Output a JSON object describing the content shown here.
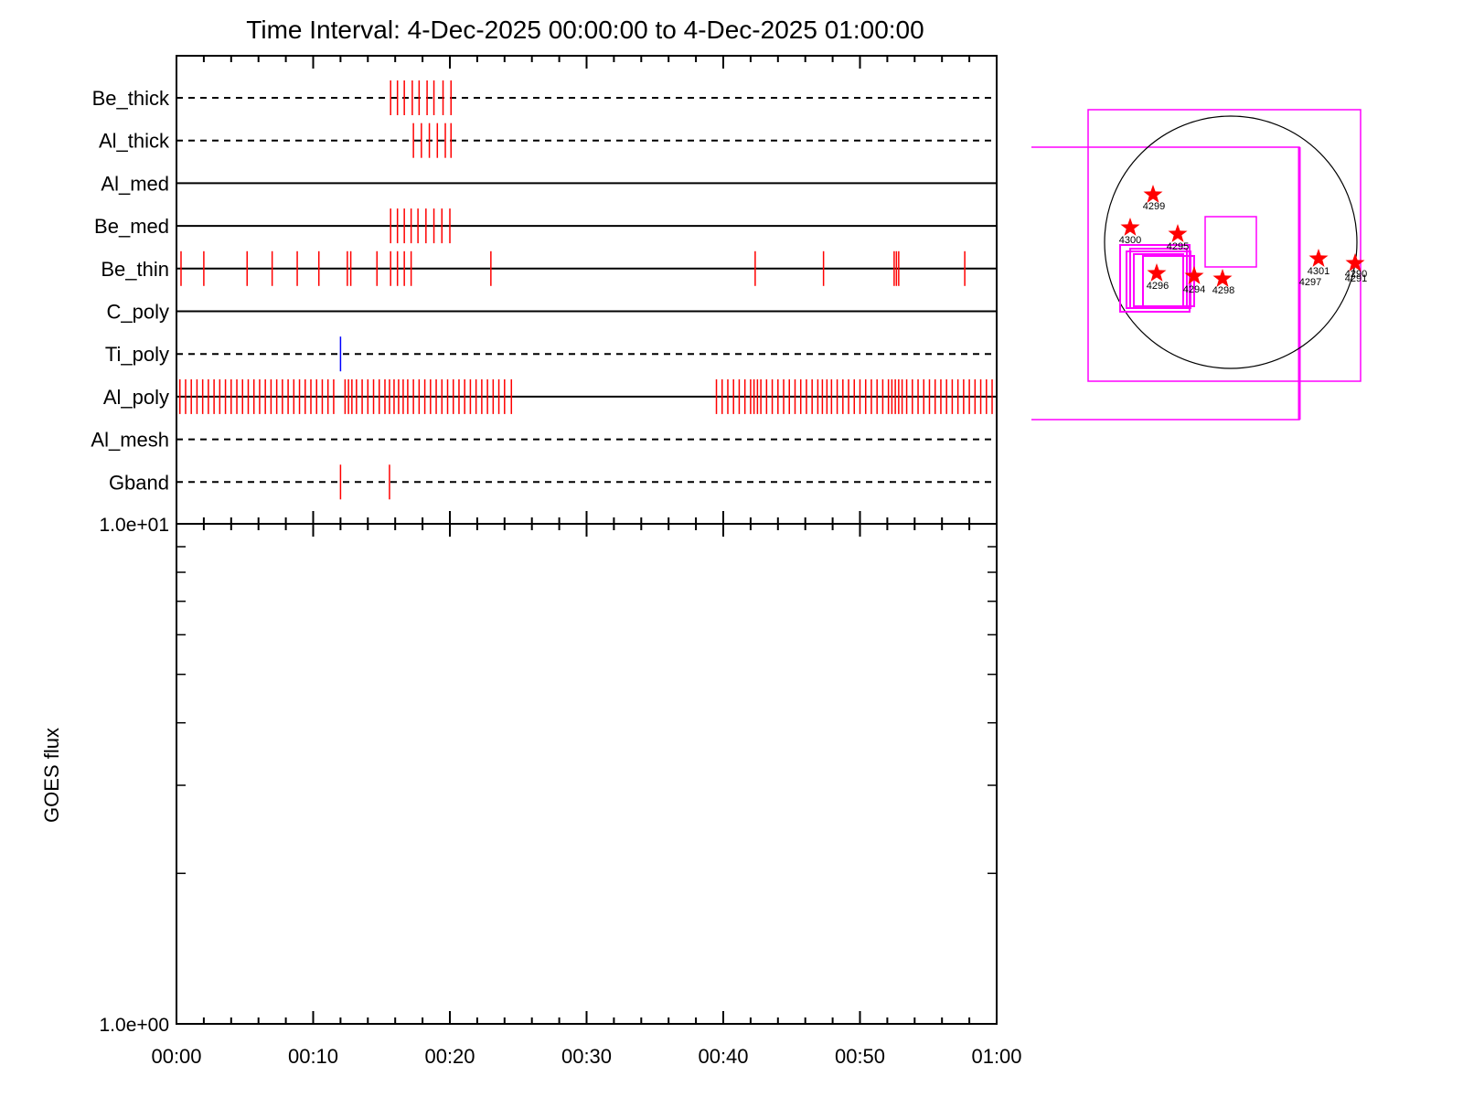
{
  "title": "Time Interval:  4-Dec-2025 00:00:00 to  4-Dec-2025 01:00:00",
  "colors": {
    "event": "#ff0000",
    "blue_event": "#0000ff",
    "box": "#ff00ff",
    "disk": "#000000",
    "star": "#ff0000"
  },
  "chart_data": [
    {
      "type": "line",
      "x_range": [
        "00:00",
        "01:00"
      ],
      "channels": [
        {
          "name": "Be_thick",
          "line": "dashed",
          "events": [
            "00:15:40",
            "00:16:10",
            "00:16:40",
            "00:17:15",
            "00:17:45",
            "00:18:20",
            "00:18:50",
            "00:19:30",
            "00:20:05"
          ]
        },
        {
          "name": "Al_thick",
          "line": "dashed",
          "events": [
            "00:17:20",
            "00:17:55",
            "00:18:30",
            "00:19:05",
            "00:19:40",
            "00:20:05"
          ]
        },
        {
          "name": "Al_med",
          "line": "solid",
          "events": []
        },
        {
          "name": "Be_med",
          "line": "solid",
          "events": [
            "00:15:40",
            "00:16:10",
            "00:16:40",
            "00:17:10",
            "00:17:40",
            "00:18:15",
            "00:18:50",
            "00:19:25",
            "00:20:00"
          ]
        },
        {
          "name": "Be_thin",
          "line": "solid",
          "events": [
            "00:00:20",
            "00:02:00",
            "00:05:10",
            "00:07:00",
            "00:08:50",
            "00:10:25",
            "00:12:30",
            "00:12:45",
            "00:14:40",
            "00:15:40",
            "00:16:10",
            "00:16:40",
            "00:17:10",
            "00:23:00",
            "00:42:20",
            "00:47:20",
            "00:52:30",
            "00:52:40",
            "00:52:50",
            "00:57:40"
          ]
        },
        {
          "name": "C_poly",
          "line": "solid",
          "events": []
        },
        {
          "name": "Ti_poly",
          "line": "dashed",
          "events": [
            "00:12:00"
          ],
          "event_color": "blue"
        },
        {
          "name": "Al_poly",
          "line": "solid",
          "events": [
            "00:00:15",
            "00:00:40",
            "00:01:05",
            "00:01:30",
            "00:01:55",
            "00:02:20",
            "00:02:45",
            "00:03:10",
            "00:03:35",
            "00:04:00",
            "00:04:25",
            "00:04:50",
            "00:05:15",
            "00:05:40",
            "00:06:05",
            "00:06:30",
            "00:06:55",
            "00:07:20",
            "00:07:45",
            "00:08:10",
            "00:08:35",
            "00:09:00",
            "00:09:25",
            "00:09:50",
            "00:10:15",
            "00:10:40",
            "00:11:05",
            "00:11:30",
            "00:12:20",
            "00:12:35",
            "00:12:50",
            "00:13:10",
            "00:13:35",
            "00:14:00",
            "00:14:25",
            "00:14:50",
            "00:15:15",
            "00:15:35",
            "00:15:55",
            "00:16:15",
            "00:16:35",
            "00:16:55",
            "00:17:20",
            "00:17:45",
            "00:18:10",
            "00:18:35",
            "00:19:00",
            "00:19:25",
            "00:19:50",
            "00:20:15",
            "00:20:40",
            "00:21:05",
            "00:21:30",
            "00:21:55",
            "00:22:20",
            "00:22:45",
            "00:23:10",
            "00:23:35",
            "00:24:00",
            "00:24:30",
            "00:39:30",
            "00:39:55",
            "00:40:20",
            "00:40:45",
            "00:41:10",
            "00:41:35",
            "00:42:00",
            "00:42:15",
            "00:42:30",
            "00:42:45",
            "00:43:10",
            "00:43:35",
            "00:44:00",
            "00:44:25",
            "00:44:50",
            "00:45:15",
            "00:45:40",
            "00:46:05",
            "00:46:30",
            "00:46:55",
            "00:47:15",
            "00:47:35",
            "00:47:55",
            "00:48:20",
            "00:48:45",
            "00:49:10",
            "00:49:35",
            "00:50:00",
            "00:50:25",
            "00:50:50",
            "00:51:15",
            "00:51:40",
            "00:52:05",
            "00:52:20",
            "00:52:35",
            "00:52:50",
            "00:53:05",
            "00:53:25",
            "00:53:50",
            "00:54:15",
            "00:54:40",
            "00:55:05",
            "00:55:30",
            "00:55:55",
            "00:56:20",
            "00:56:45",
            "00:57:10",
            "00:57:35",
            "00:58:00",
            "00:58:25",
            "00:58:50",
            "00:59:15",
            "00:59:40"
          ]
        },
        {
          "name": "Al_mesh",
          "line": "dashed",
          "events": []
        },
        {
          "name": "Gband",
          "line": "dashed",
          "events": [
            "00:12:00",
            "00:15:35"
          ]
        }
      ]
    },
    {
      "type": "line",
      "ylabel": "GOES flux",
      "y_scale": "log",
      "ylim": [
        1.0,
        10.0
      ],
      "y_tick_labels": [
        "1.0e+00",
        "1.0e+01"
      ],
      "x_tick_labels": [
        "00:00",
        "00:10",
        "00:20",
        "00:30",
        "00:40",
        "00:50",
        "01:00"
      ],
      "series": []
    }
  ],
  "solar_map": {
    "regions": [
      {
        "label": "4299",
        "star": true
      },
      {
        "label": "4300",
        "star": true
      },
      {
        "label": "4295",
        "star": true
      },
      {
        "label": "4296",
        "star": true
      },
      {
        "label": "4294",
        "star": true
      },
      {
        "label": "4298",
        "star": true
      },
      {
        "label": "4301",
        "star": true
      },
      {
        "label": "4297",
        "star": false
      },
      {
        "label": "4290",
        "star": true
      },
      {
        "label": "4291",
        "star": false
      }
    ]
  }
}
